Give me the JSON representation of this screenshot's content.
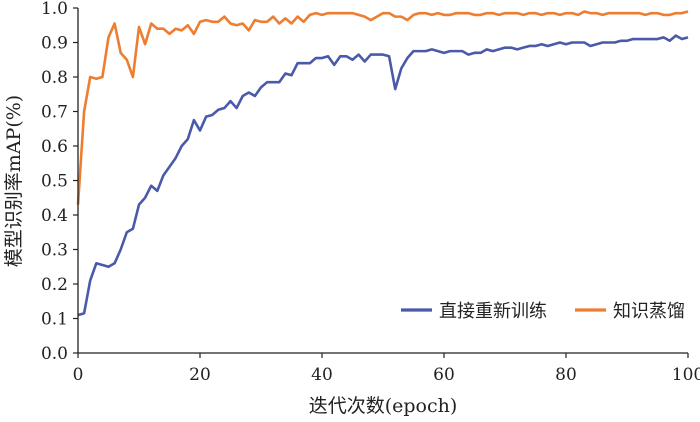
{
  "chart_data": {
    "type": "line",
    "xlabel": "迭代次数(epoch)",
    "ylabel": "模型识别率mAP(%)",
    "xlim": [
      0,
      100
    ],
    "ylim": [
      0.0,
      1.0
    ],
    "x_ticks": [
      "0",
      "20",
      "40",
      "60",
      "80",
      "100"
    ],
    "y_ticks": [
      "0.0",
      "0.1",
      "0.2",
      "0.3",
      "0.4",
      "0.5",
      "0.6",
      "0.7",
      "0.8",
      "0.9",
      "1.0"
    ],
    "legend_position": "bottom-right",
    "grid": false,
    "series": [
      {
        "name": "直接重新训练",
        "color": "#4a5aa8",
        "x": [
          0,
          1,
          2,
          3,
          4,
          5,
          6,
          7,
          8,
          9,
          10,
          11,
          12,
          13,
          14,
          15,
          16,
          17,
          18,
          19,
          20,
          21,
          22,
          23,
          24,
          25,
          26,
          27,
          28,
          29,
          30,
          31,
          32,
          33,
          34,
          35,
          36,
          37,
          38,
          39,
          40,
          41,
          42,
          43,
          44,
          45,
          46,
          47,
          48,
          49,
          50,
          51,
          52,
          53,
          54,
          55,
          56,
          57,
          58,
          59,
          60,
          61,
          62,
          63,
          64,
          65,
          66,
          67,
          68,
          69,
          70,
          71,
          72,
          73,
          74,
          75,
          76,
          77,
          78,
          79,
          80,
          81,
          82,
          83,
          84,
          85,
          86,
          87,
          88,
          89,
          90,
          91,
          92,
          93,
          94,
          95,
          96,
          97,
          98,
          99,
          100
        ],
        "values": [
          0.11,
          0.115,
          0.21,
          0.26,
          0.255,
          0.25,
          0.26,
          0.3,
          0.35,
          0.36,
          0.43,
          0.45,
          0.485,
          0.47,
          0.515,
          0.54,
          0.565,
          0.6,
          0.62,
          0.675,
          0.645,
          0.685,
          0.69,
          0.705,
          0.71,
          0.73,
          0.71,
          0.745,
          0.755,
          0.745,
          0.77,
          0.785,
          0.785,
          0.785,
          0.81,
          0.805,
          0.84,
          0.84,
          0.84,
          0.855,
          0.855,
          0.86,
          0.835,
          0.86,
          0.86,
          0.85,
          0.865,
          0.845,
          0.865,
          0.865,
          0.865,
          0.86,
          0.765,
          0.825,
          0.855,
          0.875,
          0.875,
          0.875,
          0.88,
          0.875,
          0.87,
          0.875,
          0.875,
          0.875,
          0.865,
          0.87,
          0.87,
          0.88,
          0.875,
          0.88,
          0.885,
          0.885,
          0.88,
          0.885,
          0.89,
          0.89,
          0.895,
          0.89,
          0.895,
          0.9,
          0.895,
          0.9,
          0.9,
          0.9,
          0.89,
          0.895,
          0.9,
          0.9,
          0.9,
          0.905,
          0.905,
          0.91,
          0.91,
          0.91,
          0.91,
          0.91,
          0.915,
          0.905,
          0.92,
          0.91,
          0.915
        ]
      },
      {
        "name": "知识蒸馏",
        "color": "#ed7d31",
        "x": [
          0,
          1,
          2,
          3,
          4,
          5,
          6,
          7,
          8,
          9,
          10,
          11,
          12,
          13,
          14,
          15,
          16,
          17,
          18,
          19,
          20,
          21,
          22,
          23,
          24,
          25,
          26,
          27,
          28,
          29,
          30,
          31,
          32,
          33,
          34,
          35,
          36,
          37,
          38,
          39,
          40,
          41,
          42,
          43,
          44,
          45,
          46,
          47,
          48,
          49,
          50,
          51,
          52,
          53,
          54,
          55,
          56,
          57,
          58,
          59,
          60,
          61,
          62,
          63,
          64,
          65,
          66,
          67,
          68,
          69,
          70,
          71,
          72,
          73,
          74,
          75,
          76,
          77,
          78,
          79,
          80,
          81,
          82,
          83,
          84,
          85,
          86,
          87,
          88,
          89,
          90,
          91,
          92,
          93,
          94,
          95,
          96,
          97,
          98,
          99,
          100
        ],
        "values": [
          0.43,
          0.7,
          0.8,
          0.795,
          0.8,
          0.915,
          0.955,
          0.87,
          0.85,
          0.8,
          0.945,
          0.895,
          0.955,
          0.94,
          0.94,
          0.925,
          0.94,
          0.935,
          0.95,
          0.925,
          0.96,
          0.965,
          0.96,
          0.96,
          0.975,
          0.955,
          0.95,
          0.955,
          0.935,
          0.965,
          0.96,
          0.96,
          0.975,
          0.955,
          0.97,
          0.955,
          0.975,
          0.96,
          0.98,
          0.985,
          0.98,
          0.985,
          0.985,
          0.985,
          0.985,
          0.985,
          0.98,
          0.975,
          0.965,
          0.975,
          0.985,
          0.985,
          0.975,
          0.975,
          0.965,
          0.98,
          0.985,
          0.985,
          0.98,
          0.985,
          0.98,
          0.98,
          0.985,
          0.985,
          0.985,
          0.98,
          0.98,
          0.985,
          0.985,
          0.98,
          0.985,
          0.985,
          0.985,
          0.98,
          0.985,
          0.985,
          0.98,
          0.985,
          0.985,
          0.98,
          0.985,
          0.985,
          0.98,
          0.99,
          0.985,
          0.985,
          0.98,
          0.985,
          0.985,
          0.985,
          0.985,
          0.985,
          0.985,
          0.98,
          0.985,
          0.985,
          0.98,
          0.98,
          0.985,
          0.985,
          0.99
        ]
      }
    ]
  }
}
